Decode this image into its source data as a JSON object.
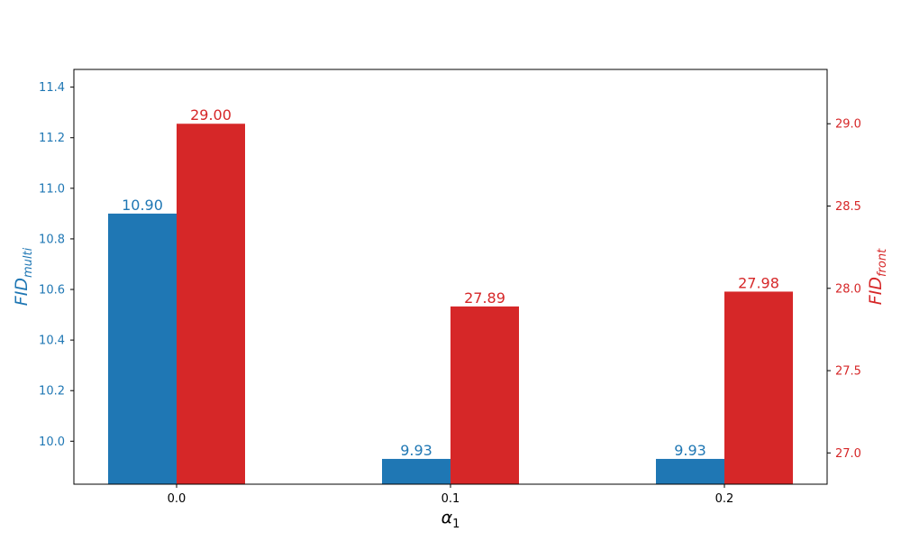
{
  "chart_data": {
    "type": "bar",
    "categories": [
      "0.0",
      "0.1",
      "0.2"
    ],
    "x_tick_labels": [
      "0.0",
      "0.1",
      "0.2"
    ],
    "xlabel": {
      "base": "α",
      "sub": "1"
    },
    "ylabel_left": {
      "base": "FID",
      "sub": "multi"
    },
    "ylabel_right": {
      "base": "FID",
      "sub": "front"
    },
    "series": [
      {
        "axis": "left",
        "color": "#1f77b4",
        "values": [
          10.9,
          9.93,
          9.93
        ],
        "value_labels": [
          "10.90",
          "9.93",
          "9.93"
        ]
      },
      {
        "axis": "right",
        "color": "#d62728",
        "values": [
          29.0,
          27.89,
          27.98
        ],
        "value_labels": [
          "29.00",
          "27.89",
          "27.98"
        ]
      }
    ],
    "ylim_left": [
      9.83,
      11.47
    ],
    "ylim_right": [
      26.81,
      29.33
    ],
    "yticks_left": [
      "10.0",
      "10.2",
      "10.4",
      "10.6",
      "10.8",
      "11.0",
      "11.2",
      "11.4"
    ],
    "yticks_right": [
      "27.0",
      "27.5",
      "28.0",
      "28.5",
      "29.0"
    ],
    "grid": false,
    "legend": "none"
  }
}
